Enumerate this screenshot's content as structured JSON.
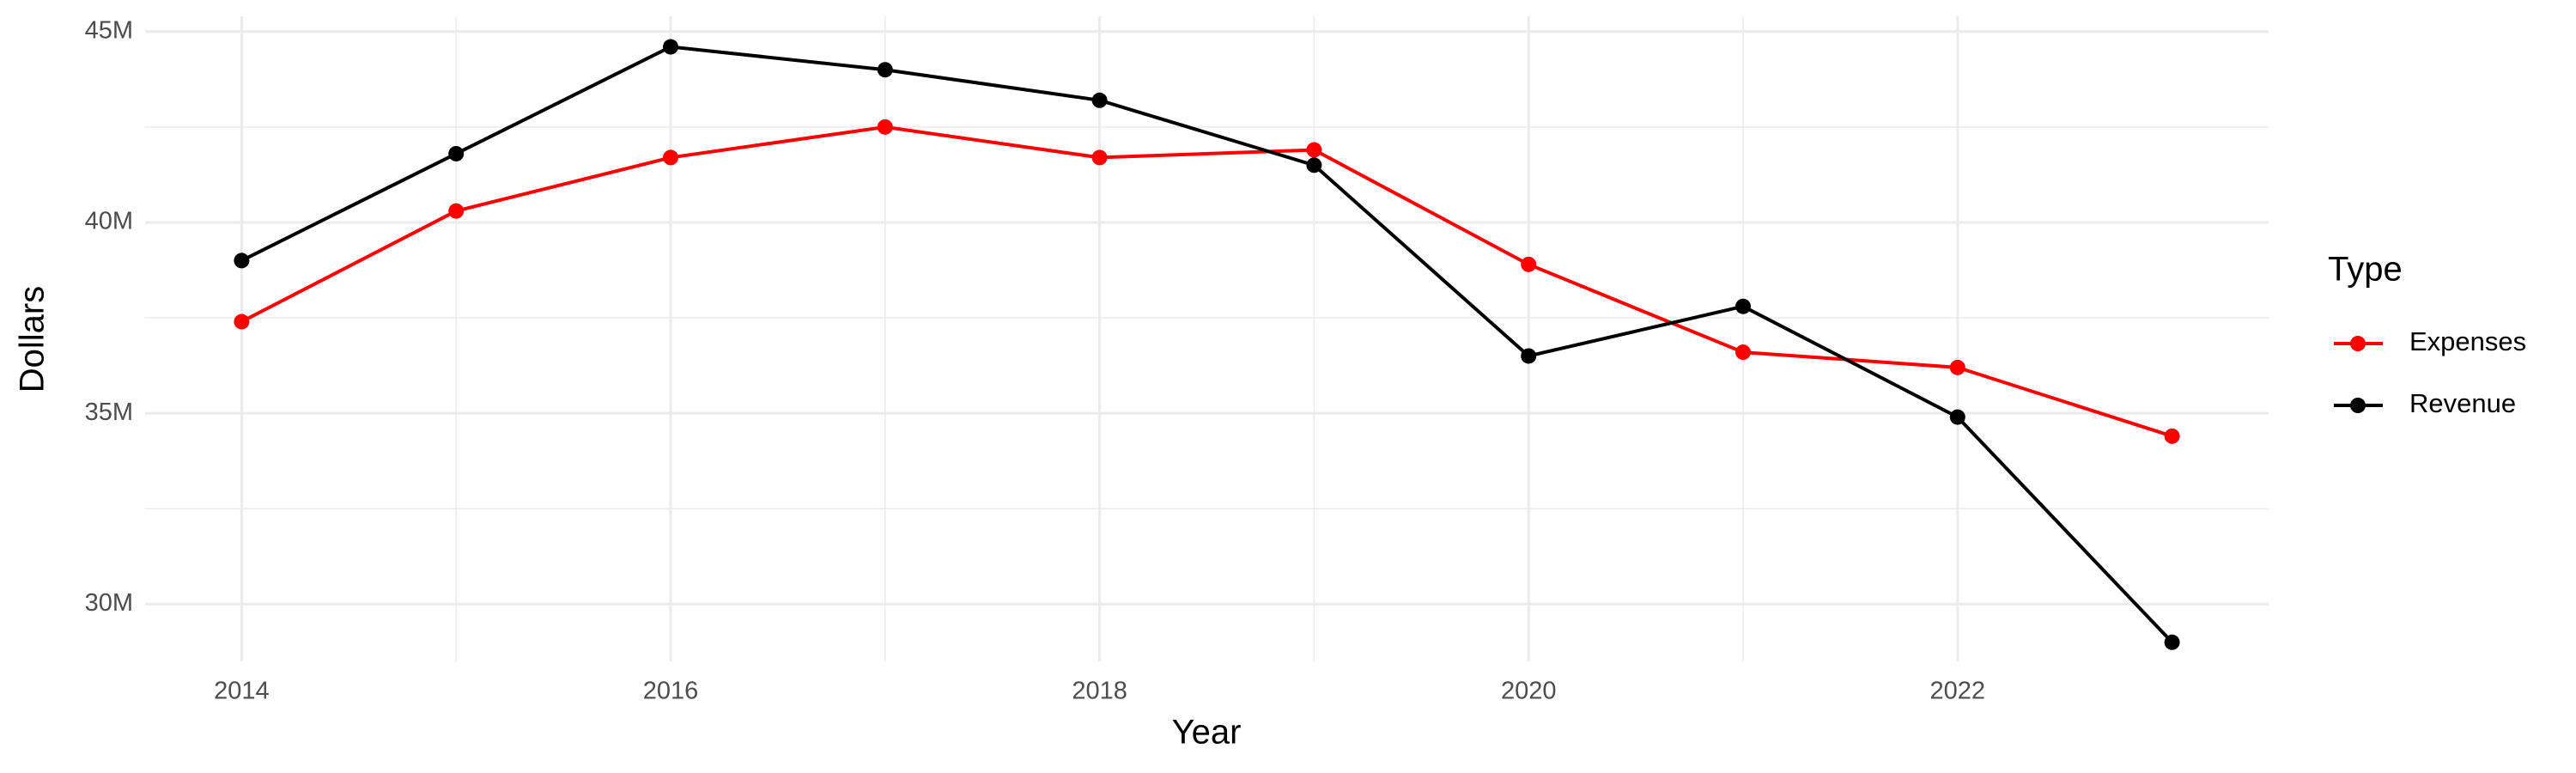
{
  "chart_data": {
    "type": "line",
    "x_label": "Year",
    "y_label": "Dollars",
    "legend_title": "Type",
    "x": [
      2014,
      2015,
      2016,
      2017,
      2018,
      2019,
      2020,
      2021,
      2022,
      2023
    ],
    "series": [
      {
        "name": "Expenses",
        "color": "#ff0000",
        "values": [
          37400000,
          40300000,
          41700000,
          42500000,
          41700000,
          41900000,
          38900000,
          36600000,
          36200000,
          34400000
        ]
      },
      {
        "name": "Revenue",
        "color": "#000000",
        "values": [
          39000000,
          41800000,
          44600000,
          44000000,
          43200000,
          41500000,
          36500000,
          37800000,
          34900000,
          29000000
        ]
      }
    ],
    "xlim": [
      2013.55,
      2023.45
    ],
    "xticks": [
      2014,
      2016,
      2018,
      2020,
      2022
    ],
    "ylim": [
      28500000,
      45400000
    ],
    "yticks": [
      {
        "value": 30000000,
        "label": "30M"
      },
      {
        "value": 35000000,
        "label": "35M"
      },
      {
        "value": 40000000,
        "label": "40M"
      },
      {
        "value": 45000000,
        "label": "45M"
      }
    ],
    "grid": true,
    "legend_position": "right"
  }
}
